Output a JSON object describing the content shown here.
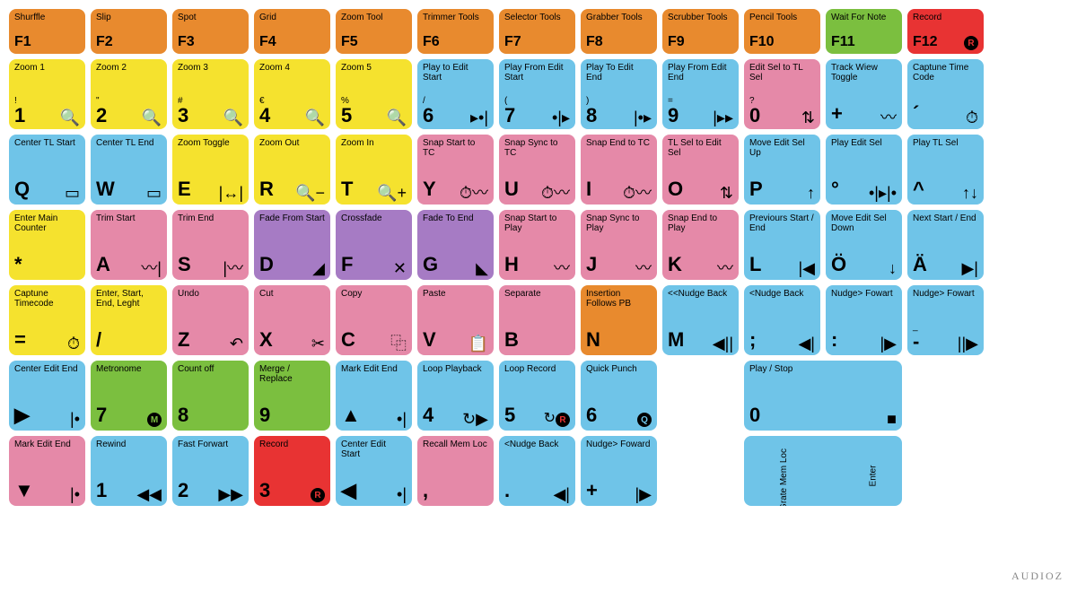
{
  "colors": {
    "orange": "#e88a2e",
    "green": "#7bbf3f",
    "red": "#e83333",
    "yellow": "#f5e22e",
    "blue": "#6fc4e8",
    "pink": "#e589a8",
    "purple": "#a67bc4",
    "white": "#ffffff"
  },
  "layout": {
    "key_width": 85,
    "key_height": 78,
    "fkey_height": 50,
    "gap": 6,
    "radius": 8,
    "label_fontsize": 10,
    "char_fontsize": 22
  },
  "rows": [
    [
      {
        "color": "orange",
        "label": "Shurffle",
        "char": "F1"
      },
      {
        "color": "orange",
        "label": "Slip",
        "char": "F2"
      },
      {
        "color": "orange",
        "label": "Spot",
        "char": "F3"
      },
      {
        "color": "orange",
        "label": "Grid",
        "char": "F4"
      },
      {
        "color": "orange",
        "label": "Zoom Tool",
        "char": "F5"
      },
      {
        "color": "orange",
        "label": "Trimmer Tools",
        "char": "F6"
      },
      {
        "color": "orange",
        "label": "Selector Tools",
        "char": "F7"
      },
      {
        "color": "orange",
        "label": "Grabber Tools",
        "char": "F8"
      },
      {
        "color": "orange",
        "label": "Scrubber Tools",
        "char": "F9"
      },
      {
        "color": "orange",
        "label": "Pencil Tools",
        "char": "F10"
      },
      {
        "color": "green",
        "label": "Wait For Note",
        "char": "F11"
      },
      {
        "color": "red",
        "label": "Record",
        "char": "F12",
        "icon": "R"
      }
    ],
    [
      {
        "color": "yellow",
        "label": "Zoom 1",
        "char": "1",
        "sym": "!",
        "icon": "🔍"
      },
      {
        "color": "yellow",
        "label": "Zoom 2",
        "char": "2",
        "sym": "\"",
        "icon": "🔍"
      },
      {
        "color": "yellow",
        "label": "Zoom 3",
        "char": "3",
        "sym": "#",
        "icon": "🔍"
      },
      {
        "color": "yellow",
        "label": "Zoom 4",
        "char": "4",
        "sym": "€",
        "icon": "🔍"
      },
      {
        "color": "yellow",
        "label": "Zoom 5",
        "char": "5",
        "sym": "%",
        "icon": "🔍"
      },
      {
        "color": "blue",
        "label": "Play to Edit Start",
        "char": "6",
        "sym": "/",
        "icon": "▸•|"
      },
      {
        "color": "blue",
        "label": "Play From Edit Start",
        "char": "7",
        "sym": "(",
        "icon": "•|▸"
      },
      {
        "color": "blue",
        "label": "Play To Edit End",
        "char": "8",
        "sym": ")",
        "icon": "|•▸"
      },
      {
        "color": "blue",
        "label": "Play From Edit End",
        "char": "9",
        "sym": "=",
        "icon": "|▸▸"
      },
      {
        "color": "pink",
        "label": "Edit Sel to TL Sel",
        "char": "0",
        "sym": "?",
        "icon": "⇅"
      },
      {
        "color": "blue",
        "label": "Track Wiew Toggle",
        "char": "+",
        "icon": "〰"
      },
      {
        "color": "blue",
        "label": "Captune Time Code",
        "char": "´",
        "icon": "⏱"
      }
    ],
    [
      {
        "color": "blue",
        "label": "Center TL Start",
        "char": "Q",
        "icon": "▭"
      },
      {
        "color": "blue",
        "label": "Center TL End",
        "char": "W",
        "icon": "▭"
      },
      {
        "color": "yellow",
        "label": "Zoom Toggle",
        "char": "E",
        "icon": "|↔|"
      },
      {
        "color": "yellow",
        "label": "Zoom Out",
        "char": "R",
        "icon": "🔍−"
      },
      {
        "color": "yellow",
        "label": "Zoom In",
        "char": "T",
        "icon": "🔍+"
      },
      {
        "color": "pink",
        "label": "Snap Start to TC",
        "char": "Y",
        "icon": "⏱〰"
      },
      {
        "color": "pink",
        "label": "Snap Sync to TC",
        "char": "U",
        "icon": "⏱〰"
      },
      {
        "color": "pink",
        "label": "Snap End to TC",
        "char": "I",
        "icon": "⏱〰"
      },
      {
        "color": "pink",
        "label": "TL Sel to Edit Sel",
        "char": "O",
        "icon": "⇅"
      },
      {
        "color": "blue",
        "label": "Move Edit Sel Up",
        "char": "P",
        "icon": "↑"
      },
      {
        "color": "blue",
        "label": "Play Edit Sel",
        "char": "°",
        "icon": "•|▸|•"
      },
      {
        "color": "blue",
        "label": "Play TL Sel",
        "char": "^",
        "icon": "↑↓"
      }
    ],
    [
      {
        "color": "yellow",
        "label": "Enter Main Counter",
        "char": "*"
      },
      {
        "color": "pink",
        "label": "Trim Start",
        "char": "A",
        "icon": "〰|"
      },
      {
        "color": "pink",
        "label": "Trim End",
        "char": "S",
        "icon": "|〰"
      },
      {
        "color": "purple",
        "label": "Fade From Start",
        "char": "D",
        "icon": "◢"
      },
      {
        "color": "purple",
        "label": "Crossfade",
        "char": "F",
        "icon": "✕"
      },
      {
        "color": "purple",
        "label": "Fade To End",
        "char": "G",
        "icon": "◣"
      },
      {
        "color": "pink",
        "label": "Snap Start to Play",
        "char": "H",
        "icon": "〰"
      },
      {
        "color": "pink",
        "label": "Snap Sync to Play",
        "char": "J",
        "icon": "〰"
      },
      {
        "color": "pink",
        "label": "Snap End to Play",
        "char": "K",
        "icon": "〰"
      },
      {
        "color": "blue",
        "label": "Previours Start / End",
        "char": "L",
        "icon": "|◀"
      },
      {
        "color": "blue",
        "label": "Move Edit Sel Down",
        "char": "Ö",
        "icon": "↓"
      },
      {
        "color": "blue",
        "label": "Next Start / End",
        "char": "Ä",
        "icon": "▶|"
      }
    ],
    [
      {
        "color": "yellow",
        "label": "Captune Timecode",
        "char": "=",
        "icon": "⏱"
      },
      {
        "color": "yellow",
        "label": "Enter, Start, End, Leght",
        "char": "/"
      },
      {
        "color": "pink",
        "label": "Undo",
        "char": "Z",
        "icon": "↶"
      },
      {
        "color": "pink",
        "label": "Cut",
        "char": "X",
        "icon": "✂"
      },
      {
        "color": "pink",
        "label": "Copy",
        "char": "C",
        "icon": "⿻"
      },
      {
        "color": "pink",
        "label": "Paste",
        "char": "V",
        "icon": "📋"
      },
      {
        "color": "pink",
        "label": "Separate",
        "char": "B"
      },
      {
        "color": "orange",
        "label": "Insertion Follows PB",
        "char": "N"
      },
      {
        "color": "blue",
        "label": "<<Nudge Back",
        "char": "M",
        "icon": "◀||"
      },
      {
        "color": "blue",
        "label": "<Nudge Back",
        "char": ";",
        "icon": "◀|"
      },
      {
        "color": "blue",
        "label": "Nudge> Fowart",
        "char": ":",
        "icon": "|▶"
      },
      {
        "color": "blue",
        "label": "Nudge> Fowart",
        "char": "-",
        "sym": "_",
        "icon": "||▶"
      }
    ],
    [
      {
        "color": "blue",
        "label": "Center Edit End",
        "char": "▶",
        "icon": "|•"
      },
      {
        "color": "green",
        "label": "Metronome",
        "char": "7",
        "icon": "M"
      },
      {
        "color": "green",
        "label": "Count off",
        "char": "8"
      },
      {
        "color": "green",
        "label": "Merge / Replace",
        "char": "9"
      },
      {
        "color": "blue",
        "label": "Mark Edit End",
        "char": "▲",
        "icon": "•|"
      },
      {
        "color": "blue",
        "label": "Loop Playback",
        "char": "4",
        "icon": "↻▶"
      },
      {
        "color": "blue",
        "label": "Loop Record",
        "char": "5",
        "icon": "↻R"
      },
      {
        "color": "blue",
        "label": "Quick Punch",
        "char": "6",
        "icon": "Q"
      },
      {
        "gap": true
      },
      {
        "color": "blue",
        "label": "Play / Stop",
        "char": "0",
        "icon": "■",
        "span": 2
      }
    ],
    [
      {
        "color": "pink",
        "label": "Mark Edit End",
        "char": "▼",
        "icon": "|•"
      },
      {
        "color": "blue",
        "label": "Rewind",
        "char": "1",
        "icon": "◀◀"
      },
      {
        "color": "blue",
        "label": "Fast Forwart",
        "char": "2",
        "icon": "▶▶"
      },
      {
        "color": "red",
        "label": "Record",
        "char": "3",
        "icon": "R"
      },
      {
        "color": "blue",
        "label": "Center Edit Start",
        "char": "◀",
        "icon": "•|"
      },
      {
        "color": "pink",
        "label": "Recall Mem Loc",
        "char": ","
      },
      {
        "color": "blue",
        "label": "<Nudge Back",
        "char": ".",
        "icon": "◀|"
      },
      {
        "color": "blue",
        "label": "Nudge> Foward",
        "char": "+",
        "icon": "|▶"
      },
      {
        "gap": true
      },
      {
        "color": "blue",
        "label_left": "Grate Mem Loc",
        "label_right": "Enter",
        "span": 2,
        "enter": true
      }
    ]
  ],
  "logo": "AUDIOZ"
}
